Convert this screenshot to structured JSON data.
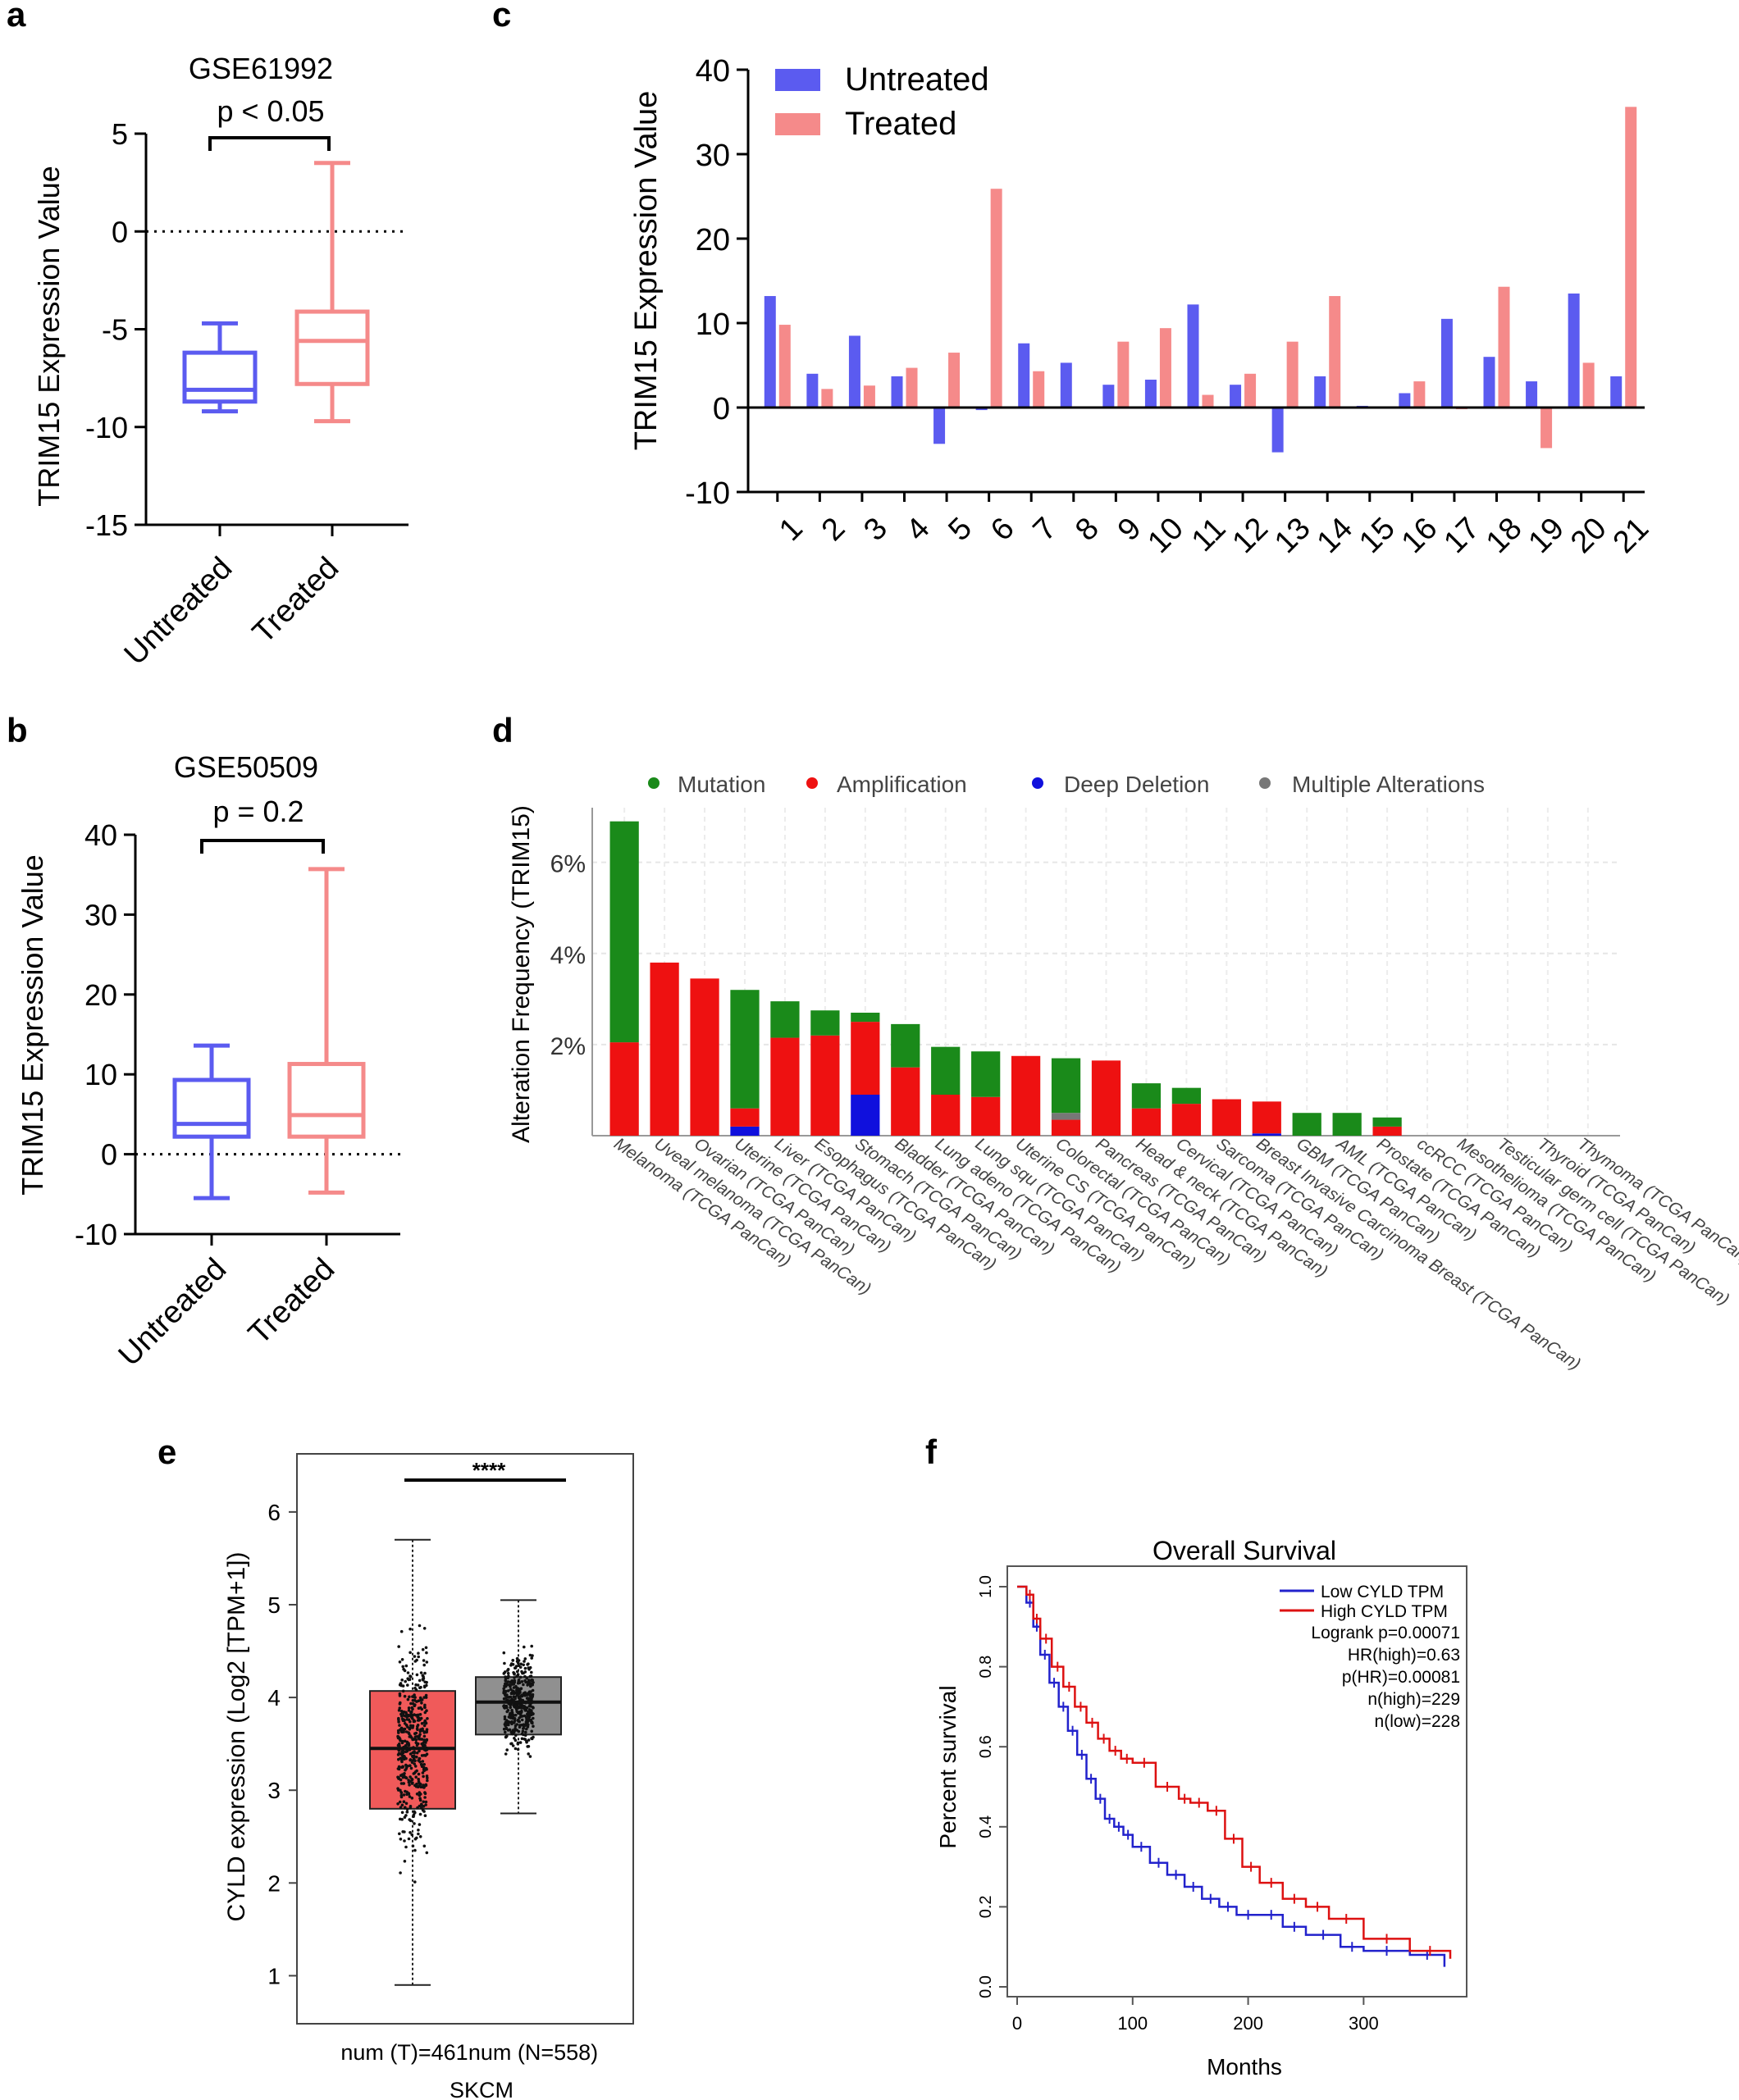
{
  "figure": {
    "panel_letters": [
      "a",
      "b",
      "c",
      "d",
      "e",
      "f"
    ]
  },
  "colors": {
    "untreated": "#5b5bf0",
    "treated": "#f58a8a",
    "mutation": "#1a8a1a",
    "amplification": "#ee1111",
    "deep_deletion": "#1010dd",
    "multiple": "#777777",
    "tumor_box": "#f05a5a",
    "normal_box": "#909090",
    "km_low": "#2222cc",
    "km_high": "#dd1111"
  },
  "chart_data": [
    {
      "panel": "a",
      "type": "box",
      "title": "GSE61992",
      "pvalue_label": "p < 0.05",
      "ylabel": "TRIM15 Expression Value",
      "ylim": [
        -15,
        5
      ],
      "yticks": [
        5,
        0,
        -5,
        -10,
        -15
      ],
      "reference_line": 0,
      "categories": [
        "Untreated",
        "Treated"
      ],
      "boxes": [
        {
          "name": "Untreated",
          "min": -9.2,
          "q1": -8.7,
          "median": -8.1,
          "q3": -6.2,
          "max": -4.7
        },
        {
          "name": "Treated",
          "min": -9.7,
          "q1": -7.8,
          "median": -5.6,
          "q3": -4.1,
          "max": 3.5
        }
      ]
    },
    {
      "panel": "b",
      "type": "box",
      "title": "GSE50509",
      "pvalue_label": "p = 0.2",
      "ylabel": "TRIM15 Expression Value",
      "ylim": [
        -10,
        40
      ],
      "yticks": [
        40,
        30,
        20,
        10,
        0,
        -10
      ],
      "reference_line": 0,
      "categories": [
        "Untreated",
        "Treated"
      ],
      "boxes": [
        {
          "name": "Untreated",
          "min": -5.5,
          "q1": 2.2,
          "median": 3.8,
          "q3": 9.3,
          "max": 13.6
        },
        {
          "name": "Treated",
          "min": -4.8,
          "q1": 2.2,
          "median": 4.9,
          "q3": 11.3,
          "max": 35.7
        }
      ]
    },
    {
      "panel": "c",
      "type": "bar",
      "ylabel": "TRIM15 Expression Value",
      "ylim": [
        -10,
        40
      ],
      "yticks": [
        40,
        30,
        20,
        10,
        0,
        -10
      ],
      "categories": [
        "1",
        "2",
        "3",
        "4",
        "5",
        "6",
        "7",
        "8",
        "9",
        "10",
        "11",
        "12",
        "13",
        "14",
        "15",
        "16",
        "17",
        "18",
        "19",
        "20",
        "21"
      ],
      "series": [
        {
          "name": "Untreated",
          "values": [
            13.2,
            4.0,
            8.5,
            3.7,
            -4.3,
            -0.3,
            7.6,
            5.3,
            2.7,
            3.3,
            12.2,
            2.7,
            -5.3,
            3.7,
            0.2,
            1.7,
            10.5,
            6.0,
            3.1,
            13.5,
            3.7
          ]
        },
        {
          "name": "Treated",
          "values": [
            9.8,
            2.2,
            2.6,
            4.7,
            6.5,
            25.9,
            4.3,
            0.1,
            7.8,
            9.4,
            1.5,
            4.0,
            7.8,
            13.2,
            0.1,
            3.1,
            -0.2,
            14.3,
            -4.8,
            5.3,
            35.6
          ]
        }
      ],
      "legend": [
        "Untreated",
        "Treated"
      ],
      "legend_position": "top-left"
    },
    {
      "panel": "d",
      "type": "stacked-bar",
      "ylabel": "Alteration Frequency (TRIM15)",
      "ylim": [
        0,
        7.2
      ],
      "yticks": [
        {
          "v": 2,
          "label": "2%"
        },
        {
          "v": 4,
          "label": "4%"
        },
        {
          "v": 6,
          "label": "6%"
        }
      ],
      "legend": [
        "Mutation",
        "Amplification",
        "Deep Deletion",
        "Multiple Alterations"
      ],
      "legend_position": "top",
      "categories": [
        "Melanoma (TCGA PanCan)",
        "Uveal melanoma (TCGA PanCan)",
        "Ovarian (TCGA PanCan)",
        "Uterine (TCGA PanCan)",
        "Liver (TCGA PanCan)",
        "Esophagus (TCGA PanCan)",
        "Stomach (TCGA PanCan)",
        "Bladder (TCGA PanCan)",
        "Lung adeno (TCGA PanCan)",
        "Lung squ (TCGA PanCan)",
        "Uterine CS (TCGA PanCan)",
        "Colorectal (TCGA PanCan)",
        "Pancreas (TCGA PanCan)",
        "Head & neck (TCGA PanCan)",
        "Cervical (TCGA PanCan)",
        "Sarcoma (TCGA PanCan)",
        "Breast Invasive Carcinoma Breast (TCGA PanCan)",
        "GBM (TCGA PanCan)",
        "AML (TCGA PanCan)",
        "Prostate (TCGA PanCan)",
        "ccRCC (TCGA PanCan)",
        "Mesothelioma (TCGA PanCan)",
        "Testicular germ cell (TCGA PanCan)",
        "Thyroid (TCGA PanCan)",
        "Thymoma (TCGA PanCan)"
      ],
      "series": [
        {
          "name": "Deep Deletion",
          "values": [
            0,
            0,
            0,
            0.2,
            0,
            0,
            0.9,
            0,
            0,
            0,
            0,
            0,
            0,
            0,
            0,
            0,
            0.05,
            0,
            0,
            0,
            0,
            0,
            0,
            0,
            0
          ]
        },
        {
          "name": "Amplification",
          "values": [
            2.05,
            3.8,
            3.45,
            0.4,
            2.15,
            2.2,
            1.6,
            1.5,
            0.9,
            0.85,
            1.75,
            0.35,
            1.65,
            0.6,
            0.7,
            0.8,
            0.7,
            0,
            0,
            0.2,
            0,
            0,
            0,
            0,
            0
          ]
        },
        {
          "name": "Multiple Alterations",
          "values": [
            0,
            0,
            0,
            0,
            0,
            0,
            0,
            0,
            0,
            0,
            0,
            0.15,
            0,
            0,
            0,
            0,
            0,
            0,
            0,
            0,
            0,
            0,
            0,
            0,
            0
          ]
        },
        {
          "name": "Mutation",
          "values": [
            4.85,
            0,
            0,
            2.6,
            0.8,
            0.55,
            0.2,
            0.95,
            1.05,
            1.0,
            0,
            1.2,
            0,
            0.55,
            0.35,
            0,
            0,
            0.5,
            0.5,
            0.2,
            0,
            0,
            0,
            0,
            0
          ]
        }
      ]
    },
    {
      "panel": "e",
      "type": "box-jitter",
      "ylabel": "CYLD expression (Log2 [TPM+1])",
      "ylim": [
        0.5,
        6.6
      ],
      "yticks": [
        1,
        2,
        3,
        4,
        5,
        6
      ],
      "significance": "****",
      "group_labels": [
        "num (T)=461",
        "num (N=558)"
      ],
      "xlabel": "SKCM",
      "boxes": [
        {
          "name": "Tumor",
          "n": 461,
          "min": 0.9,
          "q1": 2.8,
          "median": 3.45,
          "q3": 4.07,
          "max": 5.7
        },
        {
          "name": "Normal",
          "n": 558,
          "min": 2.75,
          "q1": 3.6,
          "median": 3.95,
          "q3": 4.22,
          "max": 5.05
        }
      ]
    },
    {
      "panel": "f",
      "type": "line",
      "title": "Overall Survival",
      "xlabel": "Months",
      "ylabel": "Percent survival",
      "xlim": [
        0,
        380
      ],
      "ylim": [
        0,
        1.0
      ],
      "xticks": [
        0,
        100,
        200,
        300
      ],
      "yticks": [
        "0.0",
        "0.2",
        "0.4",
        "0.6",
        "0.8",
        "1.0"
      ],
      "legend": [
        "Low CYLD TPM",
        "High CYLD TPM"
      ],
      "stats": [
        "Logrank p=0.00071",
        "HR(high)=0.63",
        "p(HR)=0.00081",
        "n(high)=229",
        "n(low)=228"
      ],
      "series": [
        {
          "name": "Low CYLD TPM",
          "x": [
            0,
            8,
            14,
            20,
            28,
            36,
            44,
            52,
            60,
            68,
            76,
            84,
            92,
            100,
            115,
            130,
            145,
            160,
            175,
            190,
            210,
            230,
            250,
            280,
            300,
            340,
            370
          ],
          "y": [
            1.0,
            0.96,
            0.9,
            0.83,
            0.76,
            0.7,
            0.64,
            0.58,
            0.52,
            0.47,
            0.42,
            0.4,
            0.38,
            0.35,
            0.31,
            0.28,
            0.25,
            0.22,
            0.2,
            0.18,
            0.18,
            0.15,
            0.13,
            0.1,
            0.09,
            0.08,
            0.05
          ]
        },
        {
          "name": "High CYLD TPM",
          "x": [
            0,
            8,
            14,
            20,
            30,
            40,
            50,
            60,
            70,
            80,
            90,
            100,
            120,
            140,
            150,
            165,
            180,
            195,
            210,
            230,
            250,
            270,
            300,
            340,
            375
          ],
          "y": [
            1.0,
            0.98,
            0.92,
            0.87,
            0.8,
            0.75,
            0.7,
            0.66,
            0.62,
            0.59,
            0.57,
            0.56,
            0.5,
            0.47,
            0.46,
            0.44,
            0.37,
            0.3,
            0.26,
            0.22,
            0.2,
            0.17,
            0.12,
            0.09,
            0.07
          ]
        }
      ]
    }
  ]
}
